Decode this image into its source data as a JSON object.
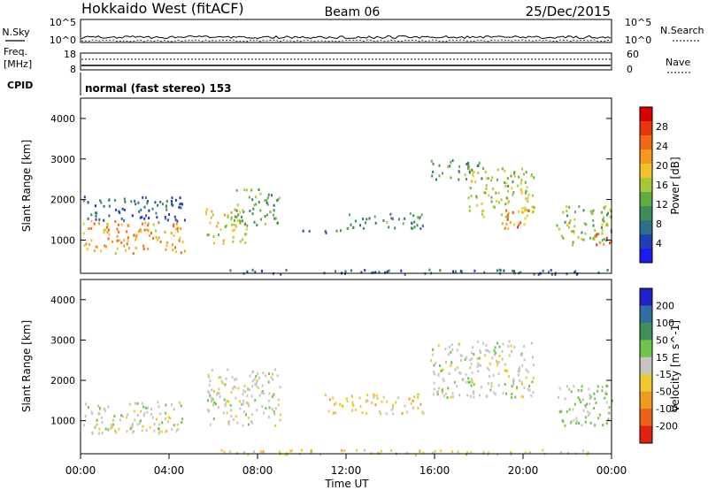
{
  "header": {
    "radar": "Hokkaido West (fitACF)",
    "beam": "Beam 06",
    "date": "25/Dec/2015"
  },
  "top_panel": {
    "left_label": "N.Sky",
    "right_label": "N.Search",
    "left_ticks": [
      "10^5",
      "10^0"
    ],
    "right_ticks": [
      "10^5",
      "10^0"
    ]
  },
  "freq_panel": {
    "left_label_1": "Freq.",
    "left_label_2": "[MHz]",
    "left_ticks": [
      "18",
      "8"
    ],
    "right_label": "Nave",
    "right_ticks": [
      "60",
      "0"
    ]
  },
  "cpid": {
    "label": "CPID",
    "value": "normal (fast stereo) 153"
  },
  "x_axis": {
    "label": "Time UT",
    "ticks": [
      "00:00",
      "04:00",
      "08:00",
      "12:00",
      "16:00",
      "20:00",
      "00:00"
    ]
  },
  "colors": {
    "power": [
      "#1c1cf0",
      "#1f3fb4",
      "#2e6f8a",
      "#3e8c5a",
      "#5fae44",
      "#a8c83c",
      "#f2c22a",
      "#f59a1c",
      "#f06a14",
      "#e8340e",
      "#d80000"
    ],
    "velocity": [
      "#2020c8",
      "#2f6f9f",
      "#3f8f5a",
      "#6fc44a",
      "#c6c6c0",
      "#f0c830",
      "#f09a20",
      "#f06018",
      "#e02010"
    ]
  },
  "chart_data": [
    {
      "type": "heatmap",
      "name": "power",
      "xlabel": "",
      "ylabel": "Slant Range [km]",
      "xlim": [
        0,
        24
      ],
      "ylim": [
        180,
        4500
      ],
      "yticks": [
        1000,
        2000,
        3000,
        4000
      ],
      "colorbar": {
        "label": "Power [dB]",
        "range": [
          0,
          32
        ],
        "ticks": [
          "28",
          "24",
          "20",
          "16",
          "12",
          "8",
          "4"
        ]
      },
      "echo_regions": [
        {
          "t0": 0.1,
          "t1": 4.7,
          "r0": 700,
          "r1": 1500,
          "p": 22
        },
        {
          "t0": 0.1,
          "t1": 4.7,
          "r0": 1500,
          "r1": 2100,
          "p": 6
        },
        {
          "t0": 5.6,
          "t1": 7.5,
          "r0": 900,
          "r1": 1800,
          "p": 18
        },
        {
          "t0": 7.0,
          "t1": 9.0,
          "r0": 1400,
          "r1": 2300,
          "p": 12
        },
        {
          "t0": 10.0,
          "t1": 12.0,
          "r0": 1200,
          "r1": 1300,
          "p": 8
        },
        {
          "t0": 12.0,
          "t1": 15.5,
          "r0": 1300,
          "r1": 1700,
          "p": 10
        },
        {
          "t0": 15.8,
          "t1": 18.2,
          "r0": 2500,
          "r1": 3000,
          "p": 10
        },
        {
          "t0": 17.5,
          "t1": 20.5,
          "r0": 1600,
          "r1": 2800,
          "p": 16
        },
        {
          "t0": 19.0,
          "t1": 20.3,
          "r0": 1300,
          "r1": 1900,
          "p": 24
        },
        {
          "t0": 21.5,
          "t1": 24.0,
          "r0": 900,
          "r1": 1900,
          "p": 14
        },
        {
          "t0": 23.2,
          "t1": 24.0,
          "r0": 900,
          "r1": 1300,
          "p": 24
        },
        {
          "t0": 6.0,
          "t1": 24.0,
          "r0": 180,
          "r1": 300,
          "p": 6
        }
      ]
    },
    {
      "type": "heatmap",
      "name": "velocity",
      "xlabel": "Time UT",
      "ylabel": "Slant Range [km]",
      "xlim": [
        0,
        24
      ],
      "ylim": [
        180,
        4500
      ],
      "yticks": [
        1000,
        2000,
        3000,
        4000
      ],
      "colorbar": {
        "label": "Velocity [m s^-1]",
        "ticks": [
          "200",
          "100",
          "50",
          "15",
          "-15",
          "-50",
          "-100",
          "-200"
        ]
      },
      "echo_regions": [
        {
          "t0": 0.1,
          "t1": 4.7,
          "r0": 700,
          "r1": 1500,
          "v": 0
        },
        {
          "t0": 5.6,
          "t1": 9.0,
          "r0": 900,
          "r1": 2300,
          "v": 0
        },
        {
          "t0": 11.0,
          "t1": 15.5,
          "r0": 1200,
          "r1": 1700,
          "v": -40
        },
        {
          "t0": 15.8,
          "t1": 20.5,
          "r0": 1600,
          "r1": 3000,
          "v": 0
        },
        {
          "t0": 21.5,
          "t1": 24.0,
          "r0": 900,
          "r1": 1900,
          "v": 30
        },
        {
          "t0": 6.0,
          "t1": 24.0,
          "r0": 180,
          "r1": 300,
          "v": -40
        }
      ]
    }
  ]
}
